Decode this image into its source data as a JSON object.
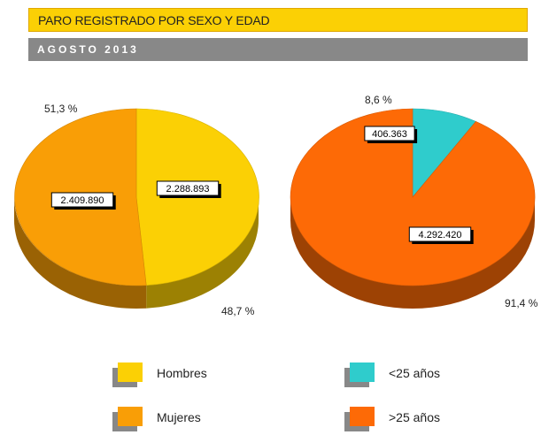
{
  "header": {
    "title": "PARO REGISTRADO POR SEXO Y EDAD",
    "subtitle": "AGOSTO  2013"
  },
  "chart_data": [
    {
      "type": "pie",
      "categories": [
        "Hombres",
        "Mujeres"
      ],
      "values": [
        2288893,
        2409890
      ],
      "value_labels": [
        "2.288.893",
        "2.409.890"
      ],
      "percent_labels": [
        "48,7 %",
        "51,3 %"
      ],
      "colors": [
        "#fbd005",
        "#f99e06"
      ]
    },
    {
      "type": "pie",
      "categories": [
        "<25 años",
        ">25 años"
      ],
      "values": [
        406363,
        4292420
      ],
      "value_labels": [
        "406.363",
        "4.292.420"
      ],
      "percent_labels": [
        "8,6 %",
        "91,4 %"
      ],
      "colors": [
        "#2fcccc",
        "#fd6a06"
      ]
    }
  ],
  "legend": [
    {
      "label": "Hombres",
      "color": "#fbd005"
    },
    {
      "label": "Mujeres",
      "color": "#f99e06"
    },
    {
      "label": "<25 años",
      "color": "#2fcccc"
    },
    {
      "label": ">25 años",
      "color": "#fd6a06"
    }
  ]
}
